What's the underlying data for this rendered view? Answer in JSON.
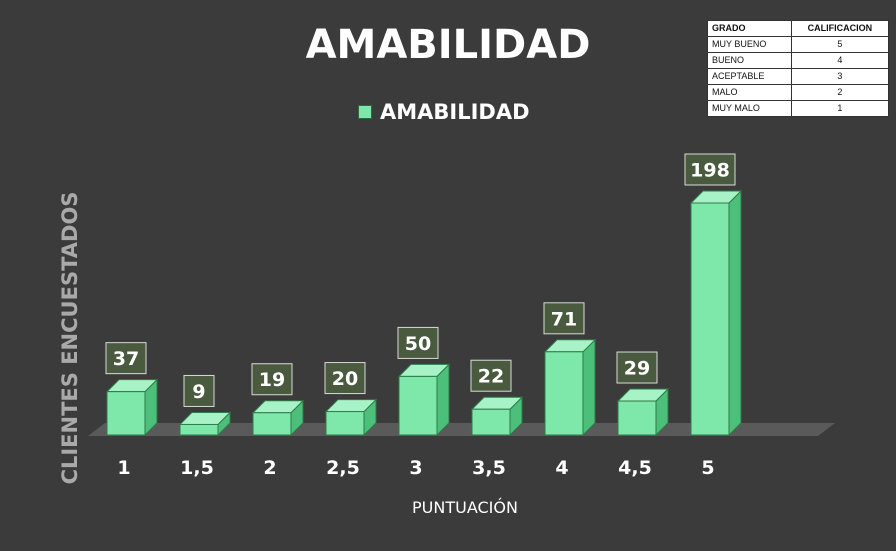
{
  "chart_data": {
    "type": "bar",
    "title": "AMABILIDAD",
    "xlabel": "PUNTUACIÓN",
    "ylabel": "CLIENTES ENCUESTADOS",
    "categories": [
      "1",
      "1,5",
      "2",
      "2,5",
      "3",
      "3,5",
      "4",
      "4,5",
      "5"
    ],
    "series": [
      {
        "name": "AMABILIDAD",
        "values": [
          37,
          9,
          19,
          20,
          50,
          22,
          71,
          29,
          198
        ]
      }
    ],
    "ylim": [
      0,
      198
    ],
    "grid": false,
    "legend_position": "top-center",
    "data_labels": true,
    "colors": {
      "background": "#3b3b3b",
      "bar_front": "#7ee8aa",
      "bar_side": "#4cbf7a",
      "bar_top": "#a7f2c6",
      "label_box": "#4a5a3f",
      "floor": "#5a5a5a"
    }
  },
  "grade_table": {
    "headers": [
      "GRADO",
      "CALIFICACION"
    ],
    "rows": [
      [
        "MUY BUENO",
        "5"
      ],
      [
        "BUENO",
        "4"
      ],
      [
        "ACEPTABLE",
        "3"
      ],
      [
        "MALO",
        "2"
      ],
      [
        "MUY MALO",
        "1"
      ]
    ]
  }
}
